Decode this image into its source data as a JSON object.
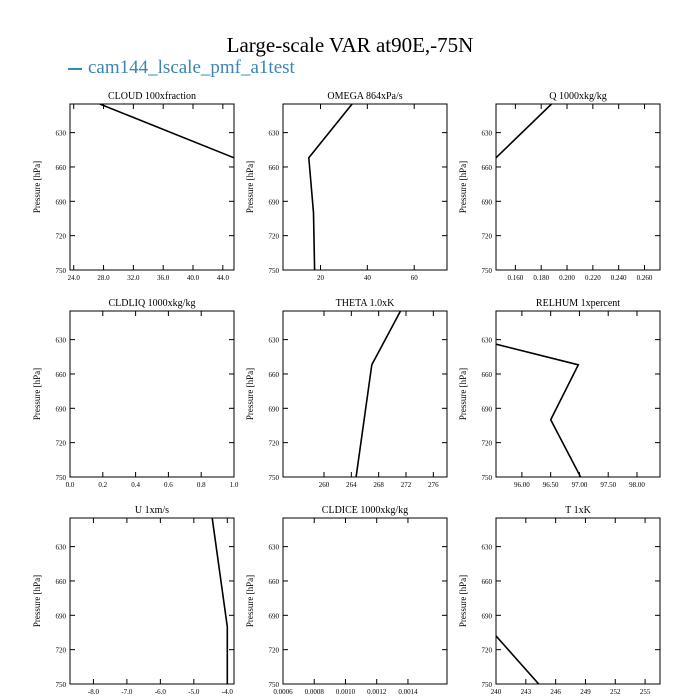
{
  "title": "Large-scale VAR at90E,-75N",
  "legend": {
    "label": "cam144_lscale_pmf_a1test",
    "color": "#3a86b4"
  },
  "chart_data": [
    {
      "type": "line",
      "title": "CLOUD  100xfraction",
      "ylabel": "Pressure [hPa]",
      "ylim": [
        750,
        605
      ],
      "yticks": [
        630,
        660,
        690,
        720,
        750
      ],
      "xlim": [
        23.5,
        45.5
      ],
      "xticks": [
        "24.0",
        "28.0",
        "32.0",
        "36.0",
        "40.0",
        "44.0"
      ],
      "series": [
        {
          "x": [
            27.5,
            45.5
          ],
          "y": [
            605,
            652
          ]
        }
      ]
    },
    {
      "type": "line",
      "title": "OMEGA  864xPa/s",
      "ylabel": "Pressure [hPa]",
      "ylim": [
        750,
        605
      ],
      "yticks": [
        630,
        660,
        690,
        720,
        750
      ],
      "xlim": [
        4,
        74
      ],
      "xticks": [
        "20",
        "40",
        "60"
      ],
      "series": [
        {
          "x": [
            33.5,
            15,
            17,
            17.5
          ],
          "y": [
            605,
            652,
            700,
            750
          ]
        }
      ]
    },
    {
      "type": "line",
      "title": "Q  1000xkg/kg",
      "ylabel": "Pressure [hPa]",
      "ylim": [
        750,
        605
      ],
      "yticks": [
        630,
        660,
        690,
        720,
        750
      ],
      "xlim": [
        0.145,
        0.272
      ],
      "xticks": [
        "0.160",
        "0.180",
        "0.200",
        "0.220",
        "0.240",
        "0.260"
      ],
      "series": [
        {
          "x": [
            0.188,
            0.145
          ],
          "y": [
            605,
            652
          ]
        }
      ]
    },
    {
      "type": "line",
      "title": "CLDLIQ  1000xkg/kg",
      "ylabel": "Pressure [hPa]",
      "ylim": [
        750,
        605
      ],
      "yticks": [
        630,
        660,
        690,
        720,
        750
      ],
      "xlim": [
        0,
        1
      ],
      "xticks": [
        "0.0",
        "0.2",
        "0.4",
        "0.6",
        "0.8",
        "1.0"
      ],
      "series": []
    },
    {
      "type": "line",
      "title": "THETA  1.0xK",
      "ylabel": "Pressure [hPa]",
      "ylim": [
        750,
        605
      ],
      "yticks": [
        630,
        660,
        690,
        720,
        750
      ],
      "xlim": [
        254,
        278
      ],
      "xticks": [
        "260",
        "264",
        "268",
        "272",
        "276"
      ],
      "series": [
        {
          "x": [
            271.2,
            267,
            264.7
          ],
          "y": [
            605,
            652,
            750
          ]
        }
      ]
    },
    {
      "type": "line",
      "title": "RELHUM  1xpercent",
      "ylabel": "Pressure [hPa]",
      "ylim": [
        750,
        605
      ],
      "yticks": [
        630,
        660,
        690,
        720,
        750
      ],
      "xlim": [
        95.55,
        98.4
      ],
      "xticks": [
        "96.00",
        "96.50",
        "97.00",
        "97.50",
        "98.00"
      ],
      "series": [
        {
          "x": [
            95.55,
            96.98,
            96.5,
            97.02
          ],
          "y": [
            634,
            652,
            700,
            750
          ]
        }
      ]
    },
    {
      "type": "line",
      "title": "U  1xm/s",
      "ylabel": "Pressure [hPa]",
      "ylim": [
        750,
        605
      ],
      "yticks": [
        630,
        660,
        690,
        720,
        750
      ],
      "xlim": [
        -8.7,
        -3.8
      ],
      "xticks": [
        "-8.0",
        "-7.0",
        "-6.0",
        "-5.0",
        "-4.0"
      ],
      "series": [
        {
          "x": [
            -4.45,
            -4.0,
            -4.0
          ],
          "y": [
            605,
            700,
            750
          ]
        }
      ]
    },
    {
      "type": "line",
      "title": "CLDICE  1000xkg/kg",
      "ylabel": "Pressure [hPa]",
      "ylim": [
        750,
        605
      ],
      "yticks": [
        630,
        660,
        690,
        720,
        750
      ],
      "xlim": [
        0.0006,
        0.00165
      ],
      "xticks": [
        "0.0006",
        "0.0008",
        "0.0010",
        "0.0012",
        "0.0014"
      ],
      "series": []
    },
    {
      "type": "line",
      "title": "T  1xK",
      "ylabel": "Pressure [hPa]",
      "ylim": [
        750,
        605
      ],
      "yticks": [
        630,
        660,
        690,
        720,
        750
      ],
      "xlim": [
        240,
        256.5
      ],
      "xticks": [
        "240",
        "243",
        "246",
        "249",
        "252",
        "255"
      ],
      "series": [
        {
          "x": [
            240,
            244.3
          ],
          "y": [
            708,
            750
          ]
        }
      ]
    }
  ]
}
